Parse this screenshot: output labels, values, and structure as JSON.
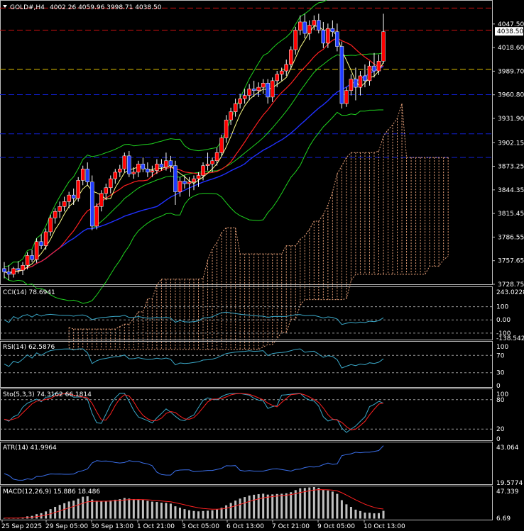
{
  "header": {
    "symbol": "GOLD#,H4",
    "ohlc": "4002.26 4059.96 3998.71 4038.50"
  },
  "colors": {
    "background": "#000000",
    "bull": "#ff0000",
    "bear": "#1f3bff",
    "wick": "#ffffff",
    "bollinger": "#1fd41f",
    "ma_fast": "#ffff88",
    "ma_mid": "#ff2020",
    "ma_slow": "#2030ff",
    "ichimoku_cloud": "#e9a27a",
    "hline_red": "#d01010",
    "hline_yellow": "#e0c000",
    "hline_blue": "#1020d0",
    "indicator_line": "#3aa8c8",
    "signal_red": "#ff2020",
    "macd_hist": "#c0c0c0"
  },
  "chart_data": [
    {
      "type": "candlestick",
      "title": "GOLD#,H4",
      "price_labels": [
        "4047.50",
        "4018.60",
        "3989.70",
        "3960.80",
        "3931.90",
        "3902.15",
        "3873.25",
        "3844.35",
        "3815.45",
        "3786.55",
        "3757.65",
        "3728.75"
      ],
      "current_price": "4038.50",
      "ylim": [
        3728.75,
        4076
      ],
      "horizontal_levels": [
        {
          "price": 4067,
          "color": "red"
        },
        {
          "price": 4040,
          "color": "red"
        },
        {
          "price": 3992,
          "color": "yellow"
        },
        {
          "price": 3961,
          "color": "blue"
        },
        {
          "price": 3913,
          "color": "blue"
        },
        {
          "price": 3884,
          "color": "blue"
        }
      ],
      "candles": [
        [
          3748,
          3756,
          3736,
          3744
        ],
        [
          3744,
          3752,
          3734,
          3741
        ],
        [
          3741,
          3750,
          3737,
          3748
        ],
        [
          3748,
          3757,
          3742,
          3746
        ],
        [
          3746,
          3756,
          3740,
          3752
        ],
        [
          3752,
          3768,
          3747,
          3764
        ],
        [
          3764,
          3771,
          3756,
          3759
        ],
        [
          3759,
          3785,
          3755,
          3781
        ],
        [
          3781,
          3790,
          3772,
          3776
        ],
        [
          3776,
          3797,
          3771,
          3793
        ],
        [
          3793,
          3814,
          3788,
          3810
        ],
        [
          3810,
          3822,
          3803,
          3818
        ],
        [
          3818,
          3830,
          3810,
          3824
        ],
        [
          3824,
          3836,
          3818,
          3830
        ],
        [
          3830,
          3842,
          3822,
          3838
        ],
        [
          3838,
          3846,
          3826,
          3834
        ],
        [
          3834,
          3860,
          3830,
          3856
        ],
        [
          3856,
          3874,
          3850,
          3870
        ],
        [
          3870,
          3878,
          3850,
          3854
        ],
        [
          3854,
          3862,
          3795,
          3800
        ],
        [
          3800,
          3828,
          3796,
          3824
        ],
        [
          3824,
          3844,
          3818,
          3840
        ],
        [
          3840,
          3852,
          3832,
          3847
        ],
        [
          3847,
          3862,
          3840,
          3858
        ],
        [
          3858,
          3870,
          3852,
          3866
        ],
        [
          3866,
          3875,
          3860,
          3870
        ],
        [
          3870,
          3890,
          3866,
          3886
        ],
        [
          3886,
          3892,
          3860,
          3864
        ],
        [
          3864,
          3872,
          3858,
          3866
        ],
        [
          3866,
          3880,
          3860,
          3876
        ],
        [
          3876,
          3884,
          3866,
          3870
        ],
        [
          3870,
          3878,
          3860,
          3866
        ],
        [
          3866,
          3874,
          3860,
          3868
        ],
        [
          3868,
          3882,
          3864,
          3876
        ],
        [
          3876,
          3882,
          3868,
          3872
        ],
        [
          3872,
          3890,
          3868,
          3880
        ],
        [
          3880,
          3886,
          3866,
          3874
        ],
        [
          3874,
          3880,
          3826,
          3842
        ],
        [
          3842,
          3860,
          3836,
          3855
        ],
        [
          3855,
          3862,
          3846,
          3852
        ],
        [
          3852,
          3860,
          3836,
          3854
        ],
        [
          3854,
          3862,
          3844,
          3858
        ],
        [
          3858,
          3866,
          3848,
          3862
        ],
        [
          3862,
          3878,
          3856,
          3874
        ],
        [
          3874,
          3890,
          3868,
          3876
        ],
        [
          3876,
          3884,
          3866,
          3880
        ],
        [
          3880,
          3896,
          3874,
          3890
        ],
        [
          3890,
          3912,
          3886,
          3908
        ],
        [
          3908,
          3936,
          3902,
          3930
        ],
        [
          3930,
          3945,
          3924,
          3940
        ],
        [
          3940,
          3956,
          3934,
          3950
        ],
        [
          3950,
          3962,
          3944,
          3956
        ],
        [
          3956,
          3968,
          3950,
          3960
        ],
        [
          3960,
          3974,
          3954,
          3968
        ],
        [
          3968,
          3978,
          3958,
          3966
        ],
        [
          3966,
          3976,
          3958,
          3970
        ],
        [
          3970,
          3980,
          3962,
          3975
        ],
        [
          3975,
          3980,
          3950,
          3958
        ],
        [
          3958,
          3982,
          3952,
          3978
        ],
        [
          3978,
          3990,
          3970,
          3986
        ],
        [
          3986,
          3994,
          3978,
          3990
        ],
        [
          3990,
          4004,
          3984,
          3998
        ],
        [
          3998,
          4020,
          3992,
          4016
        ],
        [
          4016,
          4044,
          4010,
          4040
        ],
        [
          4040,
          4058,
          4034,
          4050
        ],
        [
          4050,
          4060,
          4030,
          4036
        ],
        [
          4036,
          4052,
          4028,
          4046
        ],
        [
          4046,
          4058,
          4040,
          4052
        ],
        [
          4052,
          4060,
          4036,
          4040
        ],
        [
          4040,
          4050,
          4018,
          4024
        ],
        [
          4024,
          4048,
          4018,
          4042
        ],
        [
          4042,
          4052,
          4032,
          4038
        ],
        [
          4038,
          4048,
          4014,
          4020
        ],
        [
          4020,
          4026,
          3944,
          3950
        ],
        [
          3950,
          3970,
          3946,
          3966
        ],
        [
          3966,
          3986,
          3960,
          3980
        ],
        [
          3980,
          3994,
          3954,
          3970
        ],
        [
          3970,
          3990,
          3960,
          3984
        ],
        [
          3984,
          3998,
          3970,
          3978
        ],
        [
          3978,
          4002,
          3972,
          3996
        ],
        [
          3996,
          4012,
          3982,
          3990
        ],
        [
          3990,
          4010,
          3985,
          4002
        ],
        [
          4002,
          4060,
          3999,
          4038
        ]
      ]
    },
    {
      "type": "line",
      "title": "CCI(14) 78.6941",
      "ylim": [
        -138.5429,
        243.0228
      ],
      "tick_labels": [
        "243.0228",
        "100",
        "0.00",
        "-100",
        "-138.5429"
      ],
      "levels": [
        100,
        0,
        -100
      ]
    },
    {
      "type": "line",
      "title": "RSI(14) 62.5876",
      "ylim": [
        0,
        100
      ],
      "tick_labels": [
        "100",
        "70",
        "30",
        "0"
      ],
      "levels": [
        70,
        30
      ]
    },
    {
      "type": "line",
      "title": "Sto(5,3,3) 74.3162 66.1814",
      "ylim": [
        0,
        100
      ],
      "tick_labels": [
        "100",
        "80",
        "20",
        "0"
      ],
      "levels": [
        80,
        20
      ]
    },
    {
      "type": "line",
      "title": "ATR(14) 41.9964",
      "tick_labels": [
        "43.064",
        "19.5774"
      ],
      "ylim": [
        19.5774,
        43.064
      ]
    },
    {
      "type": "bar",
      "title": "MACD(12,26,9) 15.886 18.486",
      "tick_labels": [
        "47.339",
        "6.69"
      ],
      "ylim": [
        6.69,
        47.339
      ]
    }
  ],
  "time_labels": [
    "25 Sep 2025",
    "29 Sep 05:00",
    "30 Sep 13:00",
    "1 Oct 21:00",
    "3 Oct 05:00",
    "6 Oct 13:00",
    "7 Oct 21:00",
    "9 Oct 05:00",
    "10 Oct 13:00"
  ]
}
